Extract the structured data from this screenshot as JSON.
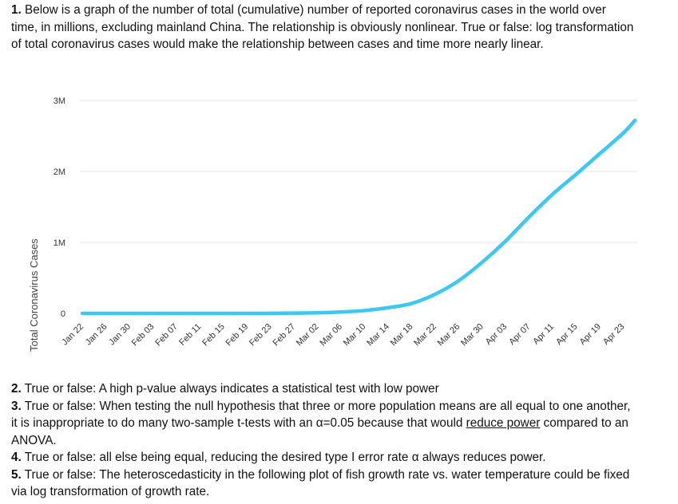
{
  "questions": {
    "q1": {
      "number": "1.",
      "text": " Below is a graph of the number of total (cumulative) number of reported coronavirus cases in the world over time, in millions, excluding mainland China. The relationship is obviously nonlinear. True or false: log transformation of total coronavirus cases would make the relationship between cases and time more nearly linear."
    },
    "q2": {
      "number": "2.",
      "text": " True or false: A high p-value always indicates a statistical test with low power"
    },
    "q3": {
      "number": "3.",
      "text_before": " True or false: When testing the null hypothesis that three or more population means are all equal to one another, it is inappropriate to do many two-sample t-tests with an α=0.05 because that would ",
      "underlined": "reduce power",
      "text_after": " compared to an ANOVA."
    },
    "q4": {
      "number": "4.",
      "text": " True or false: all else being equal, reducing the desired type I error rate α always reduces power."
    },
    "q5": {
      "number": "5.",
      "text": " True or false: The heteroscedasticity in the following plot of fish growth rate vs. water temperature could be fixed via log transformation of growth rate."
    }
  },
  "chart_data": {
    "type": "line",
    "title": "",
    "xlabel": "",
    "ylabel": "Total Coronavirus Cases",
    "ylim": [
      0,
      3000000
    ],
    "y_ticks": [
      {
        "value": 0,
        "label": "0"
      },
      {
        "value": 1000000,
        "label": "1M"
      },
      {
        "value": 2000000,
        "label": "2M"
      },
      {
        "value": 3000000,
        "label": "3M"
      }
    ],
    "x_tick_labels": [
      "Jan 22",
      "Jan 26",
      "Jan 30",
      "Feb 03",
      "Feb 07",
      "Feb 11",
      "Feb 15",
      "Feb 19",
      "Feb 23",
      "Feb 27",
      "Mar 02",
      "Mar 06",
      "Mar 10",
      "Mar 14",
      "Mar 18",
      "Mar 22",
      "Mar 26",
      "Mar 30",
      "Apr 03",
      "Apr 07",
      "Apr 11",
      "Apr 15",
      "Apr 19",
      "Apr 23"
    ],
    "grid": true,
    "line_color": "#3cc8f4",
    "series": [
      {
        "x": [
          "Jan 22",
          "Jan 26",
          "Jan 30",
          "Feb 03",
          "Feb 07",
          "Feb 11",
          "Feb 15",
          "Feb 19",
          "Feb 23",
          "Feb 27",
          "Mar 02",
          "Mar 06",
          "Mar 10",
          "Mar 14",
          "Mar 18",
          "Mar 22",
          "Mar 26",
          "Mar 30",
          "Apr 03",
          "Apr 07",
          "Apr 11",
          "Apr 15",
          "Apr 19",
          "Apr 23",
          "Apr 25"
        ],
        "values": [
          0,
          0,
          0,
          0,
          0,
          0,
          0,
          0,
          1000,
          4000,
          9000,
          20000,
          40000,
          80000,
          140000,
          270000,
          460000,
          720000,
          1020000,
          1360000,
          1680000,
          1960000,
          2250000,
          2540000,
          2720000
        ]
      }
    ]
  }
}
